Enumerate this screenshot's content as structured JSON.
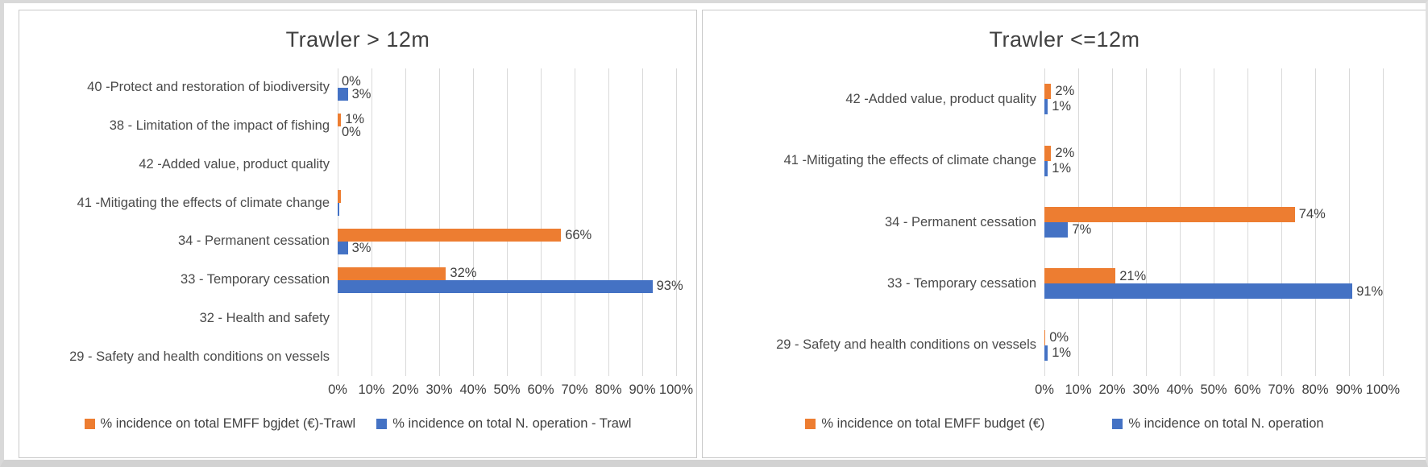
{
  "colors": {
    "emff_orange": "#ED7D31",
    "n_operation_blue": "#4472C4",
    "gridline": "#D9D9D9",
    "text": "#404040"
  },
  "chart_data": [
    {
      "type": "bar",
      "orientation": "horizontal",
      "title": "Trawler > 12m",
      "grid": true,
      "legend_position": "bottom",
      "xlim": [
        0,
        100
      ],
      "x_ticks": [
        "0%",
        "10%",
        "20%",
        "30%",
        "40%",
        "50%",
        "60%",
        "70%",
        "80%",
        "90%",
        "100%"
      ],
      "categories": [
        "40 -Protect and restoration of  biodiversity",
        "38 - Limitation of the impact of fishing",
        "42 -Added value, product quality",
        "41 -Mitigating the effects of climate change",
        "34 - Permanent cessation",
        "33 - Temporary cessation",
        "32 - Health and safety",
        "29 - Safety and health conditions on vessels"
      ],
      "series": [
        {
          "name": "% incidence  on total EMFF bgjdet (€)-Trawl",
          "color": "#ED7D31",
          "values": [
            0,
            1,
            null,
            1,
            66,
            32,
            null,
            null
          ],
          "labels": [
            "0%",
            "1%",
            "",
            "",
            "66%",
            "32%",
            "",
            ""
          ]
        },
        {
          "name": "% incidence  on total N. operation - Trawl",
          "color": "#4472C4",
          "values": [
            3,
            0,
            null,
            0.5,
            3,
            93,
            null,
            null
          ],
          "labels": [
            "3%",
            "0%",
            "",
            "",
            "3%",
            "93%",
            "",
            ""
          ]
        }
      ]
    },
    {
      "type": "bar",
      "orientation": "horizontal",
      "title": "Trawler <=12m",
      "grid": true,
      "legend_position": "bottom",
      "xlim": [
        0,
        100
      ],
      "x_ticks": [
        "0%",
        "10%",
        "20%",
        "30%",
        "40%",
        "50%",
        "60%",
        "70%",
        "80%",
        "90%",
        "100%"
      ],
      "categories": [
        "42 -Added value, product quality",
        "41 -Mitigating the effects of climate change",
        "34 - Permanent cessation",
        "33 - Temporary cessation",
        "29 - Safety and health conditions on vessels"
      ],
      "series": [
        {
          "name": "% incidence  on total EMFF budget (€)",
          "color": "#ED7D31",
          "values": [
            2,
            2,
            74,
            21,
            0.3
          ],
          "labels": [
            "2%",
            "2%",
            "74%",
            "21%",
            "0%"
          ]
        },
        {
          "name": "% incidence  on total N. operation",
          "color": "#4472C4",
          "values": [
            1,
            1,
            7,
            91,
            1
          ],
          "labels": [
            "1%",
            "1%",
            "7%",
            "91%",
            "1%"
          ]
        }
      ]
    }
  ]
}
